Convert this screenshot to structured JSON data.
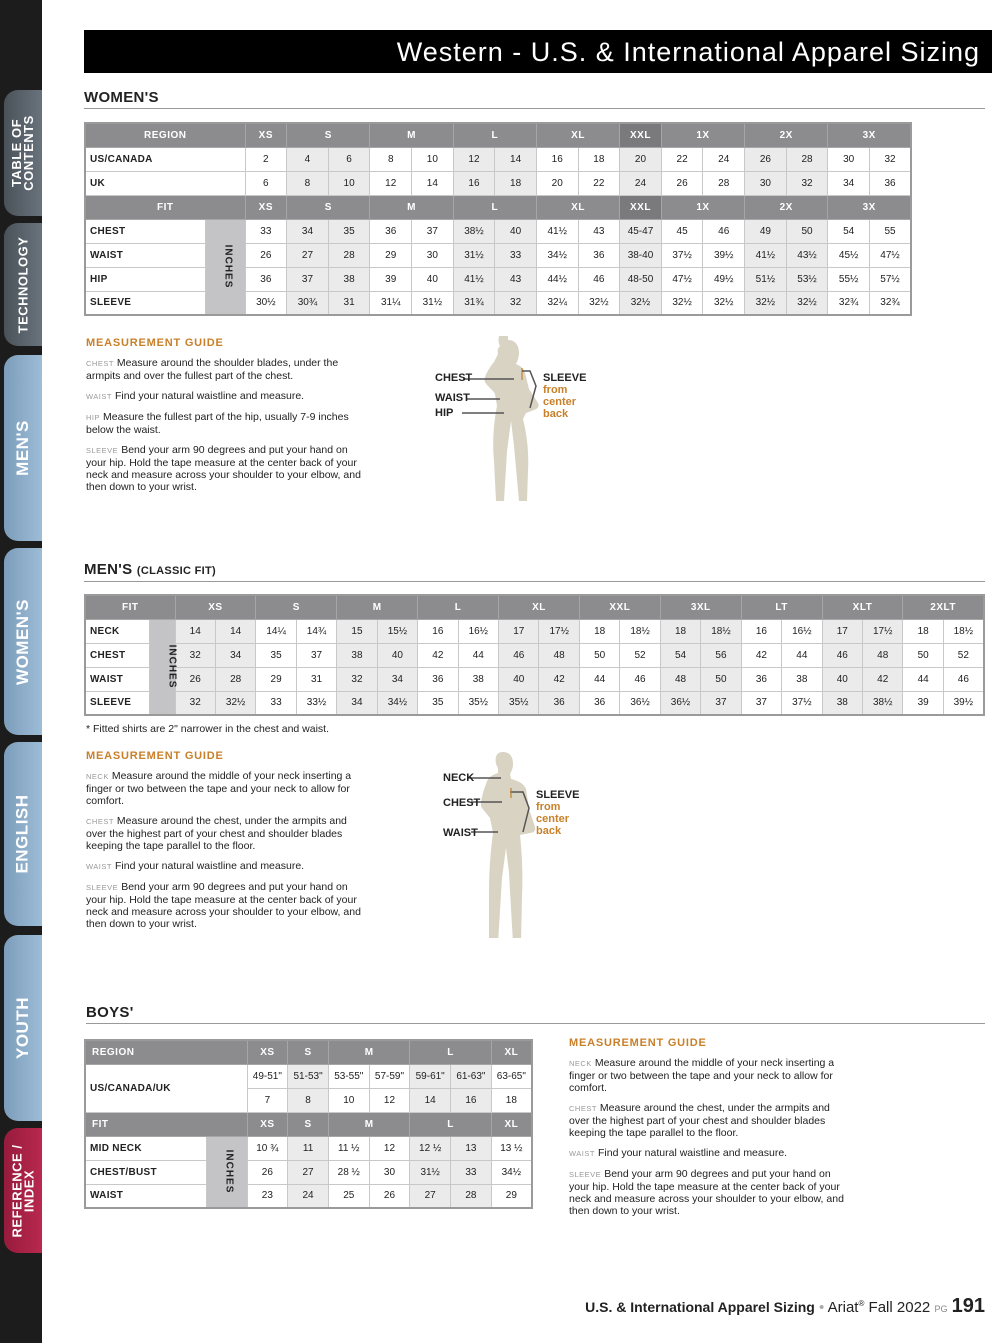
{
  "sidebar": {
    "tabs": [
      {
        "label": "TABLE OF\nCONTENTS",
        "color": "#5a636b"
      },
      {
        "label": "TECHNOLOGY",
        "color": "#5a636b"
      },
      {
        "label": "MEN'S",
        "color": "#8fb0cc"
      },
      {
        "label": "WOMEN'S",
        "color": "#8fb0cc"
      },
      {
        "label": "ENGLISH",
        "color": "#8fb0cc"
      },
      {
        "label": "YOUTH",
        "color": "#8fb0cc"
      },
      {
        "label": "REFERENCE /\nINDEX",
        "color": "#b0244a"
      }
    ]
  },
  "title": "Western - U.S. & International Apparel Sizing",
  "womens": {
    "heading": "WOMEN'S",
    "table": {
      "region_header": "REGION",
      "fit_header": "FIT",
      "inches_label": "INCHES",
      "groups": [
        {
          "label": "XS",
          "span": 1
        },
        {
          "label": "S",
          "span": 2
        },
        {
          "label": "M",
          "span": 2
        },
        {
          "label": "L",
          "span": 2
        },
        {
          "label": "XL",
          "span": 2
        },
        {
          "label": "XXL",
          "span": 1
        },
        {
          "label": "1X",
          "span": 2
        },
        {
          "label": "2X",
          "span": 2
        },
        {
          "label": "3X",
          "span": 2
        }
      ],
      "region_rows": [
        {
          "label": "US/CANADA",
          "values": [
            "2",
            "4",
            "6",
            "8",
            "10",
            "12",
            "14",
            "16",
            "18",
            "20",
            "22",
            "24",
            "26",
            "28",
            "30",
            "32"
          ]
        },
        {
          "label": "UK",
          "values": [
            "6",
            "8",
            "10",
            "12",
            "14",
            "16",
            "18",
            "20",
            "22",
            "24",
            "26",
            "28",
            "30",
            "32",
            "34",
            "36"
          ]
        }
      ],
      "fit_rows": [
        {
          "label": "CHEST",
          "values": [
            "33",
            "34",
            "35",
            "36",
            "37",
            "38½",
            "40",
            "41½",
            "43",
            "45-47",
            "45",
            "46",
            "49",
            "50",
            "54",
            "55"
          ]
        },
        {
          "label": "WAIST",
          "values": [
            "26",
            "27",
            "28",
            "29",
            "30",
            "31½",
            "33",
            "34½",
            "36",
            "38-40",
            "37½",
            "39½",
            "41½",
            "43½",
            "45½",
            "47½"
          ]
        },
        {
          "label": "HIP",
          "values": [
            "36",
            "37",
            "38",
            "39",
            "40",
            "41½",
            "43",
            "44½",
            "46",
            "48-50",
            "47½",
            "49½",
            "51½",
            "53½",
            "55½",
            "57½"
          ]
        },
        {
          "label": "SLEEVE",
          "values": [
            "30½",
            "30¾",
            "31",
            "31¼",
            "31½",
            "31¾",
            "32",
            "32¼",
            "32½",
            "32½",
            "32½",
            "32½",
            "32½",
            "32½",
            "32¾",
            "32¾"
          ]
        }
      ]
    },
    "guide": {
      "title": "MEASUREMENT GUIDE",
      "items": [
        {
          "key": "CHEST",
          "text": "Measure around the shoulder blades, under the armpits and over the fullest part of the chest."
        },
        {
          "key": "WAIST",
          "text": "Find your natural waistline and measure."
        },
        {
          "key": "HIP",
          "text": "Measure the fullest part of the hip, usually 7-9 inches below the waist."
        },
        {
          "key": "SLEEVE",
          "text": "Bend your arm 90 degrees and put your hand on your hip. Hold the tape measure at the center back of your neck and measure across your shoulder to your elbow, and then down to your wrist."
        }
      ]
    },
    "figure": {
      "labels": [
        "CHEST",
        "WAIST",
        "HIP"
      ],
      "sleeve": "SLEEVE",
      "sleeve_note": "from\ncenter\nback"
    }
  },
  "mens": {
    "heading": "MEN'S",
    "heading_sub": "(CLASSIC FIT)",
    "table": {
      "fit_header": "FIT",
      "inches_label": "INCHES",
      "groups": [
        {
          "label": "XS",
          "span": 2
        },
        {
          "label": "S",
          "span": 2
        },
        {
          "label": "M",
          "span": 2
        },
        {
          "label": "L",
          "span": 2
        },
        {
          "label": "XL",
          "span": 2
        },
        {
          "label": "XXL",
          "span": 2
        },
        {
          "label": "3XL",
          "span": 2
        },
        {
          "label": "LT",
          "span": 2
        },
        {
          "label": "XLT",
          "span": 2
        },
        {
          "label": "2XLT",
          "span": 2
        }
      ],
      "fit_rows": [
        {
          "label": "NECK",
          "values": [
            "14",
            "14",
            "14¼",
            "14¾",
            "15",
            "15½",
            "16",
            "16½",
            "17",
            "17½",
            "18",
            "18½",
            "18",
            "18½",
            "16",
            "16½",
            "17",
            "17½",
            "18",
            "18½"
          ]
        },
        {
          "label": "CHEST",
          "values": [
            "32",
            "34",
            "35",
            "37",
            "38",
            "40",
            "42",
            "44",
            "46",
            "48",
            "50",
            "52",
            "54",
            "56",
            "42",
            "44",
            "46",
            "48",
            "50",
            "52"
          ]
        },
        {
          "label": "WAIST",
          "values": [
            "26",
            "28",
            "29",
            "31",
            "32",
            "34",
            "36",
            "38",
            "40",
            "42",
            "44",
            "46",
            "48",
            "50",
            "36",
            "38",
            "40",
            "42",
            "44",
            "46"
          ]
        },
        {
          "label": "SLEEVE",
          "values": [
            "32",
            "32½",
            "33",
            "33½",
            "34",
            "34½",
            "35",
            "35½",
            "35½",
            "36",
            "36",
            "36½",
            "36½",
            "37",
            "37",
            "37½",
            "38",
            "38½",
            "39",
            "39½"
          ]
        }
      ]
    },
    "note": "* Fitted shirts are 2\" narrower in the chest and waist.",
    "guide": {
      "title": "MEASUREMENT GUIDE",
      "items": [
        {
          "key": "NECK",
          "text": "Measure around the middle of your neck inserting a finger or two between the tape and your neck to allow for comfort."
        },
        {
          "key": "CHEST",
          "text": "Measure around the chest, under the armpits and over the highest part of your chest and shoulder blades keeping the tape parallel to the floor."
        },
        {
          "key": "WAIST",
          "text": "Find your natural waistline and measure."
        },
        {
          "key": "SLEEVE",
          "text": "Bend your arm 90 degrees and put your hand on your hip. Hold the tape measure at the center back of your neck and measure across your shoulder to your elbow, and then down to your wrist."
        }
      ]
    },
    "figure": {
      "labels": [
        "NECK",
        "CHEST",
        "WAIST"
      ],
      "sleeve": "SLEEVE",
      "sleeve_note": "from\ncenter\nback"
    }
  },
  "boys": {
    "heading": "BOYS'",
    "table": {
      "region_header": "REGION",
      "fit_header": "FIT",
      "inches_label": "INCHES",
      "groups": [
        {
          "label": "XS",
          "span": 1
        },
        {
          "label": "S",
          "span": 1
        },
        {
          "label": "M",
          "span": 2
        },
        {
          "label": "L",
          "span": 2
        },
        {
          "label": "XL",
          "span": 1
        }
      ],
      "region_label": "US/CANADA/UK",
      "region_subrows": [
        [
          "49-51\"",
          "51-53\"",
          "53-55\"",
          "57-59\"",
          "59-61\"",
          "61-63\"",
          "63-65\""
        ],
        [
          "7",
          "8",
          "10",
          "12",
          "14",
          "16",
          "18"
        ]
      ],
      "fit_rows": [
        {
          "label": "MID NECK",
          "values": [
            "10 ¾",
            "11",
            "11 ½",
            "12",
            "12 ½",
            "13",
            "13 ½"
          ]
        },
        {
          "label": "CHEST/BUST",
          "values": [
            "26",
            "27",
            "28 ½",
            "30",
            "31½",
            "33",
            "34½"
          ]
        },
        {
          "label": "WAIST",
          "values": [
            "23",
            "24",
            "25",
            "26",
            "27",
            "28",
            "29"
          ]
        }
      ]
    },
    "guide": {
      "title": "MEASUREMENT GUIDE",
      "items": [
        {
          "key": "NECK",
          "text": "Measure around the middle of your neck inserting a finger or two between the tape and your neck to allow for comfort."
        },
        {
          "key": "CHEST",
          "text": "Measure around the chest, under the armpits and over the highest part of your chest and shoulder blades keeping the tape parallel to the floor."
        },
        {
          "key": "WAIST",
          "text": "Find your natural waistline and measure."
        },
        {
          "key": "SLEEVE",
          "text": "Bend your arm 90 degrees and put your hand on your hip. Hold the tape measure at the center back of your neck and measure across your shoulder to your elbow, and then down to your wrist."
        }
      ]
    }
  },
  "footer": {
    "section": "U.S. & International Apparel Sizing",
    "brand": "Ariat",
    "reg": "®",
    "season": "Fall 2022",
    "pg_label": "PG",
    "page": "191"
  },
  "colors": {
    "accent": "#c8802a",
    "header_gray": "#8c8c8e",
    "shade": "#ebebeb",
    "figure": "#d9d3c3"
  }
}
